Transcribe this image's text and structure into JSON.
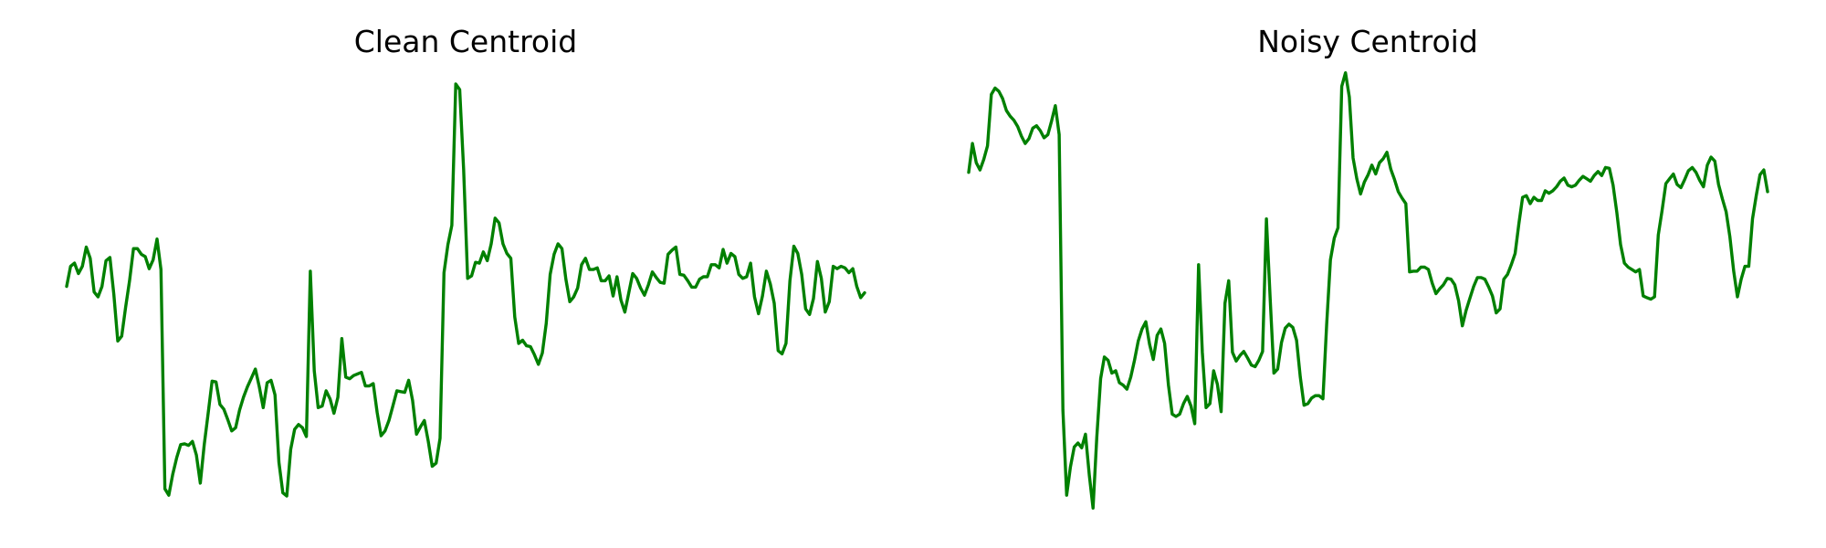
{
  "line_color": "#008000",
  "chart_data": [
    {
      "type": "line",
      "title": "Clean Centroid",
      "xlabel": "",
      "ylabel": "",
      "axes": "off",
      "grid": false,
      "x_range": [
        0,
        180
      ],
      "ylim": [
        -0.5,
        5.3
      ],
      "values": [
        2.53,
        2.78,
        2.82,
        2.69,
        2.78,
        3.02,
        2.88,
        2.46,
        2.4,
        2.53,
        2.85,
        2.89,
        2.43,
        1.85,
        1.91,
        2.27,
        2.6,
        3.0,
        3.0,
        2.93,
        2.9,
        2.75,
        2.86,
        3.12,
        2.74,
        0.01,
        -0.07,
        0.19,
        0.4,
        0.56,
        0.57,
        0.55,
        0.6,
        0.43,
        0.08,
        0.56,
        0.95,
        1.35,
        1.34,
        1.06,
        1.0,
        0.87,
        0.73,
        0.77,
        0.99,
        1.15,
        1.28,
        1.39,
        1.5,
        1.28,
        1.02,
        1.33,
        1.36,
        1.18,
        0.34,
        -0.04,
        -0.08,
        0.5,
        0.75,
        0.81,
        0.77,
        0.66,
        2.72,
        1.48,
        1.02,
        1.04,
        1.23,
        1.13,
        0.95,
        1.15,
        1.88,
        1.4,
        1.38,
        1.42,
        1.44,
        1.46,
        1.29,
        1.29,
        1.32,
        0.96,
        0.67,
        0.73,
        0.86,
        1.04,
        1.23,
        1.22,
        1.21,
        1.36,
        1.11,
        0.69,
        0.78,
        0.86,
        0.6,
        0.29,
        0.33,
        0.64,
        2.7,
        3.05,
        3.29,
        5.05,
        4.98,
        3.99,
        2.63,
        2.66,
        2.83,
        2.82,
        2.96,
        2.85,
        3.06,
        3.38,
        3.32,
        3.06,
        2.94,
        2.88,
        2.15,
        1.82,
        1.86,
        1.79,
        1.78,
        1.68,
        1.56,
        1.7,
        2.07,
        2.68,
        2.93,
        3.06,
        3.0,
        2.62,
        2.34,
        2.4,
        2.51,
        2.8,
        2.88,
        2.74,
        2.74,
        2.76,
        2.6,
        2.6,
        2.66,
        2.41,
        2.65,
        2.36,
        2.21,
        2.45,
        2.69,
        2.63,
        2.51,
        2.42,
        2.55,
        2.71,
        2.64,
        2.58,
        2.57,
        2.93,
        2.98,
        3.02,
        2.68,
        2.67,
        2.6,
        2.52,
        2.52,
        2.62,
        2.65,
        2.65,
        2.8,
        2.8,
        2.76,
        2.99,
        2.82,
        2.94,
        2.9,
        2.68,
        2.63,
        2.65,
        2.82,
        2.4,
        2.19,
        2.41,
        2.72,
        2.56,
        2.32,
        1.73,
        1.69,
        1.82,
        2.6,
        3.03,
        2.94,
        2.68,
        2.25,
        2.18,
        2.38,
        2.84,
        2.63,
        2.21,
        2.34,
        2.78,
        2.75,
        2.78,
        2.76,
        2.7,
        2.75,
        2.53,
        2.39,
        2.45
      ]
    },
    {
      "type": "line",
      "title": "Noisy Centroid",
      "xlabel": "",
      "ylabel": "",
      "axes": "off",
      "grid": false,
      "x_range": [
        0,
        180
      ],
      "ylim": [
        -0.5,
        5.3
      ],
      "values": [
        3.95,
        4.31,
        4.07,
        3.98,
        4.11,
        4.28,
        4.92,
        5.0,
        4.96,
        4.87,
        4.72,
        4.65,
        4.6,
        4.52,
        4.4,
        4.31,
        4.37,
        4.5,
        4.53,
        4.47,
        4.38,
        4.42,
        4.59,
        4.78,
        4.42,
        0.99,
        -0.07,
        0.28,
        0.53,
        0.58,
        0.52,
        0.69,
        0.18,
        -0.23,
        0.65,
        1.38,
        1.65,
        1.61,
        1.45,
        1.48,
        1.33,
        1.3,
        1.25,
        1.4,
        1.61,
        1.85,
        2.0,
        2.09,
        1.81,
        1.62,
        1.92,
        2.0,
        1.82,
        1.3,
        0.94,
        0.91,
        0.94,
        1.07,
        1.16,
        1.04,
        0.82,
        2.8,
        1.71,
        1.02,
        1.07,
        1.48,
        1.31,
        0.97,
        2.32,
        2.6,
        1.71,
        1.6,
        1.67,
        1.72,
        1.64,
        1.55,
        1.53,
        1.61,
        1.72,
        3.37,
        2.38,
        1.45,
        1.5,
        1.83,
        2.01,
        2.06,
        2.02,
        1.86,
        1.4,
        1.05,
        1.07,
        1.14,
        1.17,
        1.17,
        1.13,
        2.06,
        2.86,
        3.13,
        3.26,
        5.02,
        5.19,
        4.89,
        4.13,
        3.87,
        3.68,
        3.83,
        3.92,
        4.04,
        3.93,
        4.07,
        4.12,
        4.2,
        3.99,
        3.86,
        3.71,
        3.63,
        3.56,
        2.71,
        2.72,
        2.72,
        2.77,
        2.77,
        2.74,
        2.57,
        2.44,
        2.5,
        2.55,
        2.63,
        2.62,
        2.55,
        2.35,
        2.04,
        2.23,
        2.38,
        2.53,
        2.64,
        2.64,
        2.62,
        2.52,
        2.41,
        2.2,
        2.25,
        2.62,
        2.68,
        2.8,
        2.94,
        3.31,
        3.64,
        3.66,
        3.56,
        3.64,
        3.6,
        3.6,
        3.72,
        3.69,
        3.72,
        3.77,
        3.84,
        3.88,
        3.79,
        3.77,
        3.79,
        3.85,
        3.9,
        3.87,
        3.84,
        3.91,
        3.96,
        3.91,
        4.01,
        4.0,
        3.79,
        3.45,
        3.05,
        2.82,
        2.77,
        2.74,
        2.71,
        2.74,
        2.41,
        2.39,
        2.37,
        2.4,
        3.17,
        3.47,
        3.81,
        3.87,
        3.93,
        3.8,
        3.76,
        3.86,
        3.97,
        4.01,
        3.95,
        3.85,
        3.77,
        4.04,
        4.14,
        4.09,
        3.8,
        3.62,
        3.46,
        3.15,
        2.72,
        2.4,
        2.62,
        2.78,
        2.78,
        3.37,
        3.66,
        3.92,
        3.98,
        3.71
      ]
    }
  ]
}
